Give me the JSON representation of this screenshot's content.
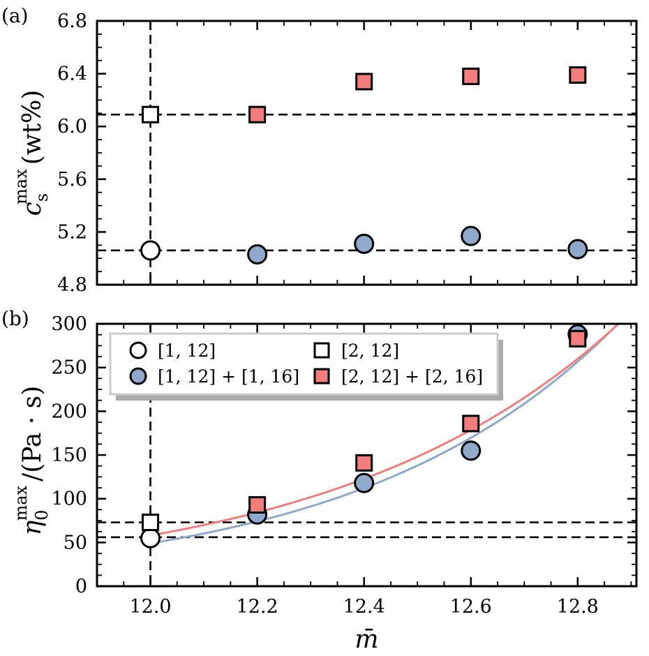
{
  "chart_data": [
    {
      "type": "scatter",
      "panel_label": "(a)",
      "ylabel": {
        "main": "c",
        "sub": "s",
        "sup": "max",
        "units": "(wt%)"
      },
      "xlim": [
        11.9,
        12.91
      ],
      "ylim": [
        4.8,
        6.8
      ],
      "x_ticks": [
        12.0,
        12.2,
        12.4,
        12.6,
        12.8
      ],
      "x_tick_labels": [],
      "y_ticks": [
        4.8,
        5.2,
        5.6,
        6.0,
        6.4,
        6.8
      ],
      "y_tick_labels": [
        "4.8",
        "5.2",
        "5.6",
        "6.0",
        "6.4",
        "6.8"
      ],
      "series": [
        {
          "marker": "circle",
          "fill": "#ffffff",
          "x": [
            12.0
          ],
          "y": [
            5.06
          ]
        },
        {
          "marker": "square",
          "fill": "#ffffff",
          "x": [
            12.0
          ],
          "y": [
            6.09
          ]
        },
        {
          "marker": "circle",
          "fill": "#8fa9cc",
          "x": [
            12.2,
            12.4,
            12.6,
            12.8
          ],
          "y": [
            5.03,
            5.11,
            5.17,
            5.07
          ]
        },
        {
          "marker": "square",
          "fill": "#f27d7d",
          "x": [
            12.2,
            12.4,
            12.6,
            12.8
          ],
          "y": [
            6.09,
            6.34,
            6.38,
            6.39
          ]
        }
      ],
      "reference_lines": {
        "vertical_x": [
          12.0
        ],
        "horizontal_y": [
          6.09,
          5.06
        ]
      },
      "grid": false
    },
    {
      "type": "scatter",
      "panel_label": "(b)",
      "xlabel": "m̄",
      "ylabel": {
        "main": "η",
        "sub": "0",
        "sup": "max",
        "units": "/(Pa · s)"
      },
      "xlim": [
        11.9,
        12.91
      ],
      "ylim": [
        0,
        300
      ],
      "x_ticks": [
        12.0,
        12.2,
        12.4,
        12.6,
        12.8
      ],
      "x_tick_labels": [
        "12.0",
        "12.2",
        "12.4",
        "12.6",
        "12.8"
      ],
      "y_ticks": [
        0,
        50,
        100,
        150,
        200,
        250,
        300
      ],
      "y_tick_labels": [
        "0",
        "50",
        "100",
        "150",
        "200",
        "250",
        "300"
      ],
      "series": [
        {
          "name": "[1, 12]",
          "marker": "circle",
          "fill": "#ffffff",
          "x": [
            12.0
          ],
          "y": [
            55
          ]
        },
        {
          "name": "[2, 12]",
          "marker": "square",
          "fill": "#ffffff",
          "x": [
            12.0
          ],
          "y": [
            73
          ]
        },
        {
          "name": "[1, 12] + [1, 16]",
          "marker": "circle",
          "fill": "#8fa9cc",
          "x": [
            12.2,
            12.4,
            12.6,
            12.8
          ],
          "y": [
            82,
            118,
            155,
            288
          ]
        },
        {
          "name": "[2, 12] + [2, 16]",
          "marker": "square",
          "fill": "#f27d7d",
          "x": [
            12.2,
            12.4,
            12.6,
            12.8
          ],
          "y": [
            93,
            141,
            186,
            283
          ]
        }
      ],
      "fits": [
        {
          "color": "#8fa9cc",
          "a": 49,
          "b": 2.07,
          "x0": 12.0,
          "x_range": [
            12.0,
            12.91
          ]
        },
        {
          "color": "#f27d7d",
          "a": 58,
          "b": 1.875,
          "x0": 12.0,
          "x_range": [
            12.0,
            12.91
          ]
        }
      ],
      "reference_lines": {
        "vertical_x": [
          12.0
        ],
        "horizontal_y": [
          73,
          56
        ]
      },
      "legend_position": "top-left",
      "grid": false
    }
  ]
}
